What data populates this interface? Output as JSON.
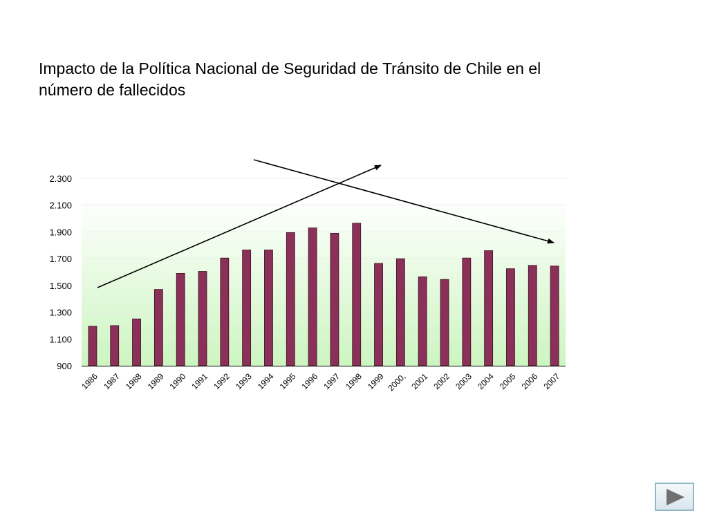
{
  "title": {
    "line1": "Impacto de la Política Nacional de Seguridad de Tránsito de Chile en el",
    "line2": "número de fallecidos"
  },
  "chart_data": {
    "type": "bar",
    "title": "Impacto de la Política Nacional de Seguridad de Tránsito de Chile en el número de fallecidos",
    "xlabel": "",
    "ylabel": "",
    "categories": [
      "1986",
      "1987",
      "1988",
      "1989",
      "1990",
      "1991",
      "1992",
      "1993",
      "1994",
      "1995",
      "1996",
      "1997",
      "1998",
      "1999",
      "2000,",
      "2001",
      "2002",
      "2003",
      "2004",
      "2005",
      "2006",
      "2007"
    ],
    "values": [
      1195,
      1200,
      1250,
      1470,
      1590,
      1605,
      1705,
      1765,
      1765,
      1895,
      1930,
      1890,
      1965,
      1665,
      1700,
      1565,
      1545,
      1705,
      1760,
      1625,
      1650,
      1645
    ],
    "ylim": [
      900,
      2300
    ],
    "yticks": [
      900,
      1100,
      1300,
      1500,
      1700,
      1900,
      2100,
      2300
    ],
    "ytick_labels": [
      "900",
      "1.100",
      "1.300",
      "1.500",
      "1.700",
      "1.900",
      "2.100",
      "2.300"
    ],
    "annotations": [
      "rising-trend-arrow",
      "falling-trend-arrow"
    ],
    "colors": {
      "bar": "#8b3058",
      "bar_edge": "#3a0f22",
      "bg_top": "#ffffff",
      "bg_bottom": "#ccf5c0"
    }
  },
  "navigation": {
    "next_icon": "play-triangle-icon"
  }
}
